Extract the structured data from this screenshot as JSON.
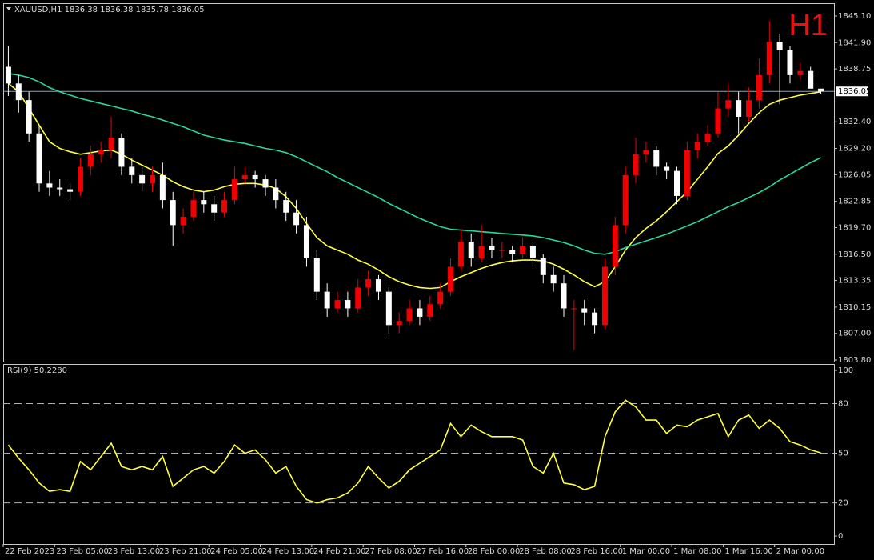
{
  "chart_data": [
    {
      "type": "candlestick",
      "header": "XAUUSD,H1  1836.38 1836.38 1835.78 1836.05",
      "timeframe_badge": "H1",
      "categories": [
        "22 Feb 2023",
        null,
        null,
        null,
        null,
        "23 Feb 05:00",
        null,
        null,
        null,
        null,
        "23 Feb 13:00",
        null,
        null,
        null,
        null,
        "23 Feb 21:00",
        null,
        null,
        null,
        null,
        "24 Feb 05:00",
        null,
        null,
        null,
        null,
        "24 Feb 13:00",
        null,
        null,
        null,
        null,
        "24 Feb 21:00",
        null,
        null,
        null,
        null,
        "27 Feb 08:00",
        null,
        null,
        null,
        null,
        "27 Feb 16:00",
        null,
        null,
        null,
        null,
        "28 Feb 00:00",
        null,
        null,
        null,
        null,
        "28 Feb 08:00",
        null,
        null,
        null,
        null,
        "28 Feb 16:00",
        null,
        null,
        null,
        null,
        "1 Mar 00:00",
        null,
        null,
        null,
        null,
        "1 Mar 08:00",
        null,
        null,
        null,
        null,
        "1 Mar 16:00",
        null,
        null,
        null,
        null,
        "2 Mar 00:00",
        null,
        null,
        null,
        null
      ],
      "open": [
        1839,
        1837,
        1835,
        1831,
        1825,
        1824.5,
        1824.3,
        1824,
        1827,
        1828.5,
        1829,
        1830.5,
        1827,
        1826,
        1825,
        1826,
        1823,
        1820,
        1821,
        1823,
        1822.5,
        1821.5,
        1823,
        1825.5,
        1826,
        1825.5,
        1824.5,
        1823,
        1821.5,
        1820,
        1816,
        1812,
        1810,
        1811,
        1810,
        1812.5,
        1813.5,
        1812,
        1808,
        1808.5,
        1810,
        1809,
        1810.5,
        1812,
        1815,
        1818,
        1816,
        1817.5,
        1817,
        1817,
        1816.5,
        1817.5,
        1816,
        1814,
        1813,
        1810,
        1810,
        1809.5,
        1808,
        1815,
        1820,
        1826,
        1828.5,
        1829,
        1827,
        1826.5,
        1823.5,
        1829,
        1830,
        1831,
        1834,
        1835,
        1833,
        1835,
        1838,
        1842,
        1841,
        1838,
        1838.5,
        1836.38
      ],
      "high": [
        1841.5,
        1838,
        1836,
        1832,
        1826.5,
        1825.5,
        1825,
        1828,
        1829.5,
        1830,
        1833,
        1831,
        1828,
        1827,
        1827,
        1827.5,
        1824,
        1822,
        1824,
        1824,
        1823.5,
        1824,
        1827,
        1827,
        1826.5,
        1826,
        1825.5,
        1824,
        1823,
        1821,
        1817,
        1813,
        1812,
        1812,
        1813.5,
        1814.5,
        1814,
        1812.5,
        1809.5,
        1811,
        1811,
        1811.5,
        1813,
        1816,
        1819.5,
        1819,
        1820,
        1818.5,
        1818,
        1817.5,
        1818.5,
        1818,
        1816.5,
        1815,
        1814,
        1811,
        1811,
        1810,
        1816,
        1821,
        1827,
        1830.5,
        1830,
        1829.5,
        1827.5,
        1827,
        1830,
        1831,
        1832,
        1836,
        1837,
        1836,
        1836.5,
        1840,
        1844.5,
        1843,
        1841.5,
        1839.5,
        1839,
        1836.38
      ],
      "low": [
        1835.5,
        1833.5,
        1830,
        1824,
        1823.5,
        1823.5,
        1823,
        1823.5,
        1826,
        1827.5,
        1828,
        1826,
        1825,
        1824,
        1824,
        1822,
        1817.5,
        1819,
        1820.5,
        1821.5,
        1820.5,
        1821,
        1822.5,
        1825,
        1824.5,
        1823.5,
        1822,
        1820.5,
        1819,
        1815,
        1811,
        1809,
        1809.5,
        1809,
        1809.5,
        1811.5,
        1811,
        1807,
        1807,
        1808,
        1808,
        1808.5,
        1810,
        1811.5,
        1814.5,
        1815,
        1815.5,
        1816,
        1816,
        1815.5,
        1816,
        1815,
        1813,
        1812,
        1809,
        1805,
        1808,
        1807,
        1807.5,
        1814,
        1819,
        1825,
        1827.5,
        1826,
        1825.5,
        1822.5,
        1823,
        1828,
        1829.5,
        1830.5,
        1833,
        1831,
        1832.5,
        1834,
        1837,
        1834.5,
        1837,
        1837.5,
        1836.5,
        1835.78
      ],
      "close": [
        1837,
        1835,
        1831,
        1825,
        1824.5,
        1824.3,
        1824,
        1827,
        1828.5,
        1829,
        1830.5,
        1827,
        1826,
        1825,
        1826,
        1823,
        1820,
        1821,
        1823,
        1822.5,
        1821.5,
        1823,
        1825.5,
        1826,
        1825.5,
        1824.5,
        1823,
        1821.5,
        1820,
        1816,
        1812,
        1810,
        1811,
        1810,
        1812.5,
        1813.5,
        1812,
        1808,
        1808.5,
        1810,
        1809,
        1810.5,
        1812,
        1815,
        1818,
        1816,
        1817.5,
        1817,
        1817,
        1816.5,
        1817.5,
        1816,
        1814,
        1813,
        1810,
        1810,
        1809.5,
        1808,
        1815,
        1820,
        1826,
        1828.5,
        1829,
        1827,
        1826.5,
        1823.5,
        1829,
        1830,
        1831,
        1834,
        1835,
        1833,
        1835,
        1838,
        1842,
        1841,
        1838,
        1838.5,
        1836.38,
        1836.05
      ],
      "up_color": "#f00000",
      "down_color": "#ffffff",
      "overlays": [
        {
          "color": "#ffff3c",
          "values": [
            1837,
            1836,
            1834,
            1832,
            1830,
            1829.2,
            1828.8,
            1828.5,
            1828.7,
            1828.9,
            1829,
            1828.5,
            1827.8,
            1827.2,
            1826.6,
            1826,
            1825.2,
            1824.6,
            1824.2,
            1824,
            1824.2,
            1824.6,
            1824.9,
            1825,
            1825,
            1824.8,
            1824.4,
            1823.4,
            1822,
            1820.2,
            1818.5,
            1817.5,
            1817,
            1816.5,
            1815.8,
            1815.3,
            1814.6,
            1813.8,
            1813.2,
            1812.8,
            1812.5,
            1812.4,
            1812.5,
            1813.2,
            1813.8,
            1814.3,
            1814.8,
            1815.2,
            1815.5,
            1815.7,
            1815.8,
            1815.8,
            1815.7,
            1815.3,
            1814.7,
            1814,
            1813.2,
            1812.6,
            1813.2,
            1815,
            1817,
            1818.5,
            1819.6,
            1820.5,
            1821.6,
            1822.8,
            1824,
            1825.5,
            1827,
            1828.6,
            1829.5,
            1830.8,
            1832.2,
            1833.5,
            1834.5,
            1835,
            1835.3,
            1835.6,
            1835.8,
            1836
          ]
        },
        {
          "color": "#28d6a0",
          "values": [
            1838.2,
            1838,
            1837.7,
            1837.2,
            1836.5,
            1836,
            1835.6,
            1835.2,
            1834.9,
            1834.6,
            1834.3,
            1834,
            1833.7,
            1833.3,
            1833,
            1832.6,
            1832.2,
            1831.8,
            1831.3,
            1830.8,
            1830.5,
            1830.2,
            1830,
            1829.8,
            1829.5,
            1829.2,
            1829,
            1828.7,
            1828.2,
            1827.6,
            1827,
            1826.4,
            1825.7,
            1825.1,
            1824.5,
            1823.9,
            1823.3,
            1822.6,
            1822,
            1821.4,
            1820.8,
            1820.3,
            1819.8,
            1819.5,
            1819.4,
            1819.3,
            1819.2,
            1819.1,
            1819,
            1818.9,
            1818.8,
            1818.7,
            1818.5,
            1818.2,
            1817.9,
            1817.5,
            1817,
            1816.6,
            1816.5,
            1816.8,
            1817.3,
            1817.7,
            1818.1,
            1818.5,
            1818.9,
            1819.4,
            1819.9,
            1820.4,
            1821,
            1821.6,
            1822.2,
            1822.7,
            1823.3,
            1823.9,
            1824.6,
            1825.4,
            1826.1,
            1826.8,
            1827.5,
            1828.1
          ]
        }
      ],
      "last_price": 1836.05,
      "ylim": [
        1803.61,
        1846.54
      ],
      "yticks": [
        {
          "value": 1845.1,
          "label": "1845.10"
        },
        {
          "value": 1841.9,
          "label": "1841.90"
        },
        1838.75,
        {
          "value": 1832.4,
          "label": "1832.40"
        },
        {
          "value": 1829.2,
          "label": "1829.20"
        },
        1826.05,
        1822.85,
        {
          "value": 1819.7,
          "label": "1819.70"
        },
        {
          "value": 1816.5,
          "label": "1816.50"
        },
        1813.35,
        1810.15,
        {
          "value": 1807,
          "label": "1807.00"
        },
        {
          "value": 1803.8,
          "label": "1803.80"
        }
      ]
    },
    {
      "type": "line",
      "title": "RSI(9) 50.2280",
      "color": "#ffff3c",
      "values": [
        55,
        47,
        40,
        32,
        27,
        28,
        27,
        45,
        40,
        48,
        56,
        42,
        40,
        42,
        40,
        48,
        30,
        35,
        40,
        42,
        38,
        45,
        55,
        50,
        52,
        46,
        38,
        42,
        30,
        22,
        20,
        22,
        23,
        26,
        32,
        42,
        35,
        29,
        33,
        40,
        44,
        48,
        52,
        68,
        60,
        67,
        63,
        60,
        60,
        60,
        58,
        42,
        38,
        50,
        32,
        31,
        28,
        30,
        60,
        75,
        82,
        78,
        70,
        70,
        62,
        67,
        66,
        70,
        72,
        74,
        60,
        70,
        73,
        65,
        70,
        65,
        57,
        55,
        52,
        50.228
      ],
      "levels": [
        20,
        50,
        80
      ],
      "ylim": [
        -4.8,
        103.4
      ],
      "yticks": [
        0,
        20,
        50,
        80,
        100
      ]
    }
  ]
}
